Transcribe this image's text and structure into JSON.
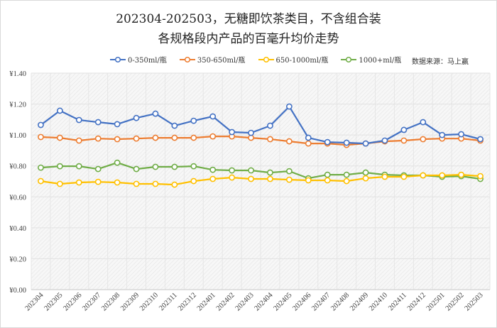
{
  "header": {
    "title_line1": "202304-202503，无糖即饮茶类目，不含组合装",
    "title_line2": "各规格段内产品的百毫升均价走势",
    "source": "数据来源：马上赢"
  },
  "legend": [
    {
      "label": "0-350ml/瓶",
      "color": "#4472C4"
    },
    {
      "label": "350-650ml/瓶",
      "color": "#ED7D31"
    },
    {
      "label": "650-1000ml/瓶",
      "color": "#FFC000"
    },
    {
      "label": "1000+ml/瓶",
      "color": "#70AD47"
    }
  ],
  "chart_data": {
    "type": "line",
    "title": "202304-202503，无糖即饮茶类目，不含组合装 各规格段内产品的百毫升均价走势",
    "xlabel": "",
    "ylabel": "",
    "ylim": [
      0,
      1.4
    ],
    "yticks": [
      "¥0.00",
      "¥0.20",
      "¥0.40",
      "¥0.60",
      "¥0.80",
      "¥1.00",
      "¥1.20",
      "¥1.40"
    ],
    "grid": true,
    "legend_position": "top",
    "categories": [
      "202304",
      "202305",
      "202306",
      "202307",
      "202308",
      "202309",
      "202310",
      "202311",
      "202312",
      "202401",
      "202402",
      "202403",
      "202404",
      "202405",
      "202406",
      "202407",
      "202408",
      "202409",
      "202410",
      "202411",
      "202412",
      "202501",
      "202502",
      "202503"
    ],
    "series": [
      {
        "name": "0-350ml/瓶",
        "color": "#4472C4",
        "values": [
          1.065,
          1.157,
          1.097,
          1.083,
          1.07,
          1.11,
          1.138,
          1.06,
          1.092,
          1.12,
          1.019,
          1.014,
          1.06,
          1.184,
          0.982,
          0.954,
          0.95,
          0.945,
          0.964,
          1.033,
          1.083,
          1.0,
          1.005,
          0.973
        ]
      },
      {
        "name": "350-650ml/瓶",
        "color": "#ED7D31",
        "values": [
          0.987,
          0.982,
          0.964,
          0.977,
          0.973,
          0.977,
          0.982,
          0.982,
          0.982,
          0.991,
          0.991,
          0.982,
          0.973,
          0.959,
          0.945,
          0.945,
          0.936,
          0.945,
          0.959,
          0.964,
          0.973,
          0.977,
          0.977,
          0.964
        ]
      },
      {
        "name": "650-1000ml/瓶",
        "color": "#FFC000",
        "values": [
          0.702,
          0.684,
          0.693,
          0.697,
          0.693,
          0.684,
          0.684,
          0.679,
          0.702,
          0.716,
          0.725,
          0.716,
          0.716,
          0.711,
          0.707,
          0.707,
          0.702,
          0.72,
          0.73,
          0.73,
          0.739,
          0.739,
          0.743,
          0.734
        ]
      },
      {
        "name": "1000+ml/瓶",
        "color": "#70AD47",
        "values": [
          0.789,
          0.798,
          0.798,
          0.78,
          0.821,
          0.78,
          0.794,
          0.794,
          0.798,
          0.775,
          0.771,
          0.771,
          0.757,
          0.766,
          0.72,
          0.743,
          0.743,
          0.757,
          0.743,
          0.739,
          0.739,
          0.73,
          0.734,
          0.716
        ]
      }
    ]
  }
}
